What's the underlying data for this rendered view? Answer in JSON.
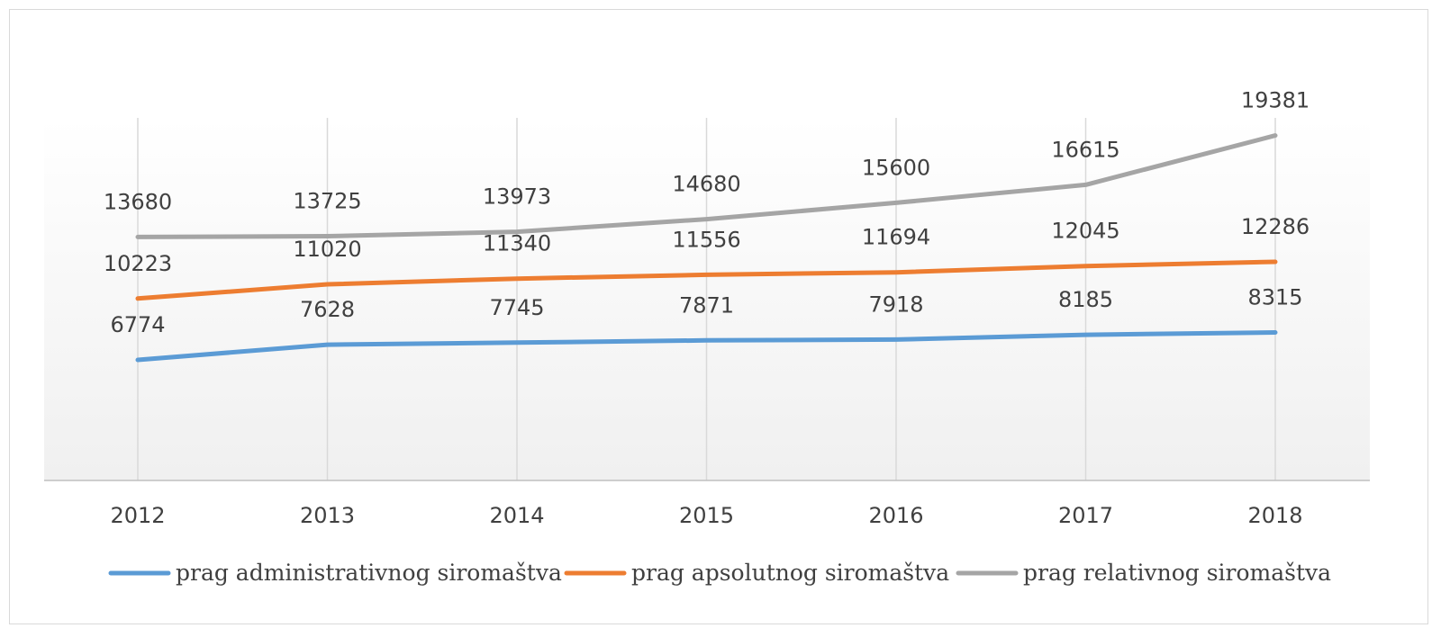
{
  "chart_data": {
    "type": "line",
    "categories": [
      "2012",
      "2013",
      "2014",
      "2015",
      "2016",
      "2017",
      "2018"
    ],
    "series": [
      {
        "name": "prag administrativnog siromaštva",
        "color": "#5b9bd5",
        "values": [
          6774,
          7628,
          7745,
          7871,
          7918,
          8185,
          8315
        ]
      },
      {
        "name": "prag apsolutnog siromaštva",
        "color": "#ed7d31",
        "values": [
          10223,
          11020,
          11340,
          11556,
          11694,
          12045,
          12286
        ]
      },
      {
        "name": "prag relativnog siromaštva",
        "color": "#a5a5a5",
        "values": [
          13680,
          13725,
          13973,
          14680,
          15600,
          16615,
          19381
        ]
      }
    ],
    "ylim": [
      0,
      20000
    ],
    "grid": "vertical",
    "legend_position": "bottom",
    "data_labels": true
  }
}
